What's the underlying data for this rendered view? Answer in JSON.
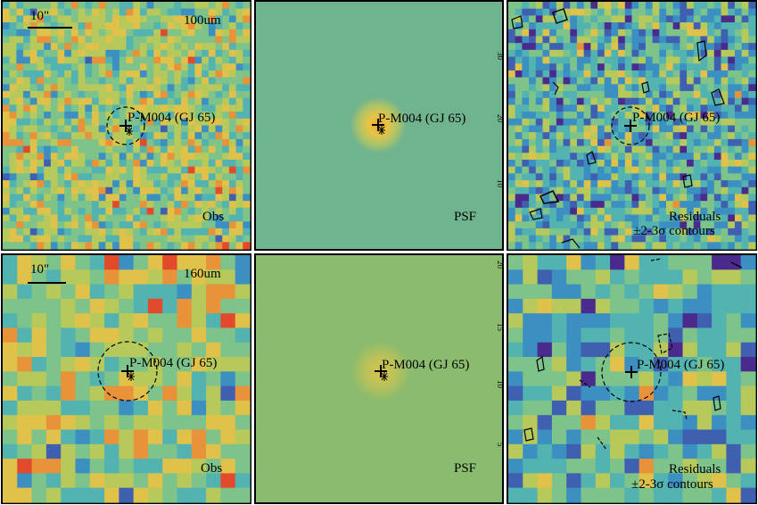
{
  "scale_label": "10\"",
  "source_label": "P-M004 (GJ 65)",
  "rows": [
    {
      "band": "100um",
      "panels": [
        {
          "id": "obs",
          "label": "Obs"
        },
        {
          "id": "psf",
          "label": "PSF"
        },
        {
          "id": "res",
          "label_line1": "Residuals",
          "label_line2": "±2-3σ contours"
        }
      ],
      "axis_ticks": [
        "30",
        "20",
        "10"
      ]
    },
    {
      "band": "160um",
      "panels": [
        {
          "id": "obs",
          "label": "Obs"
        },
        {
          "id": "psf",
          "label": "PSF"
        },
        {
          "id": "res",
          "label_line1": "Residuals",
          "label_line2": "±2-3σ contours"
        }
      ],
      "axis_ticks": [
        "20",
        "15",
        "10",
        "5"
      ]
    }
  ],
  "colors": {
    "psf_background_top": "#6fb38f",
    "psf_background_bottom": "#8abb6e",
    "psf_core": "#e9a531",
    "frame": "#000000"
  }
}
